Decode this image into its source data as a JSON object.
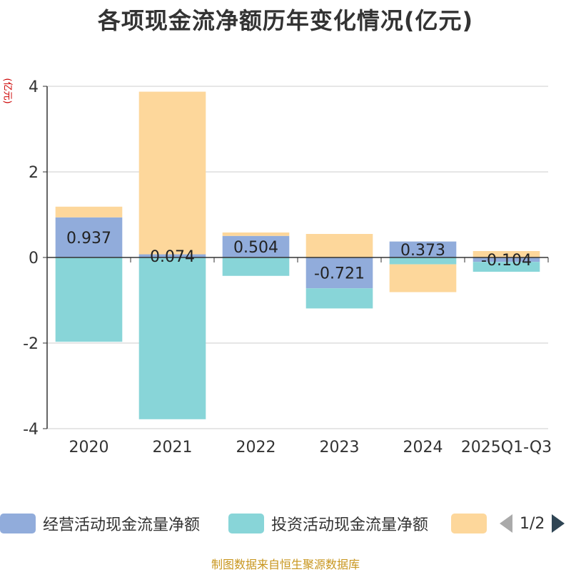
{
  "chart_data": {
    "type": "bar",
    "stacked": true,
    "title": "各项现金流净额历年变化情况(亿元)",
    "ylabel": "(亿元)",
    "ylim": [
      -4,
      4
    ],
    "yticks": [
      4,
      2,
      0,
      -2,
      -4
    ],
    "grid": true,
    "categories": [
      "2020",
      "2021",
      "2022",
      "2023",
      "2024",
      "2025Q1-Q3"
    ],
    "series": [
      {
        "name": "经营活动现金流量净额",
        "color": "#91acdb",
        "values": [
          0.937,
          0.074,
          0.504,
          -0.721,
          0.373,
          -0.104
        ],
        "labels": [
          "0.937",
          "0.074",
          "0.504",
          "-0.721",
          "0.373",
          "-0.104"
        ]
      },
      {
        "name": "投资活动现金流量净额",
        "color": "#88d5d8",
        "values": [
          -1.97,
          -3.78,
          -0.43,
          -0.47,
          -0.16,
          -0.23
        ]
      },
      {
        "name": "",
        "color": "#fdd79b",
        "values": [
          0.25,
          3.8,
          0.08,
          0.55,
          -0.65,
          0.15
        ]
      }
    ],
    "legend": {
      "position": "bottom",
      "page_text": "1/2"
    }
  },
  "source_text": "制图数据来自恒生聚源数据库"
}
